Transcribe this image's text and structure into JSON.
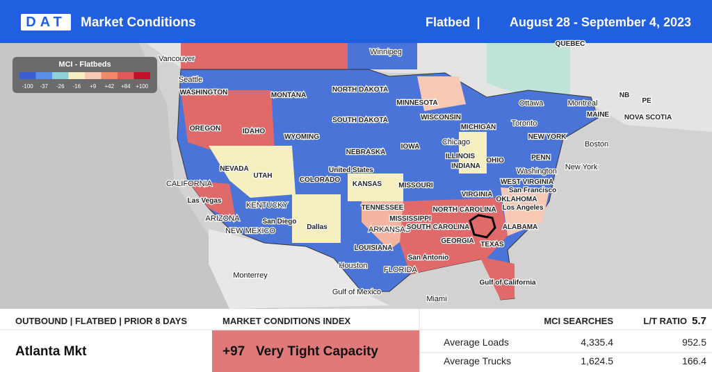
{
  "header": {
    "logo": "DAT",
    "title": "Market Conditions",
    "equipment": "Flatbed",
    "separator": "|",
    "dates": "August 28 - September 4, 2023"
  },
  "legend": {
    "title": "MCI - Flatbeds",
    "ticks": [
      "-100",
      "-37",
      "-26",
      "-16",
      "+9",
      "+42",
      "+84",
      "+100"
    ]
  },
  "map": {
    "labels": [
      "Vancouver",
      "Winnipeg",
      "QUEBEC",
      "Seattle",
      "WASHINGTON",
      "MONTANA",
      "NORTH DAKOTA",
      "MINNESOTA",
      "Ottawa",
      "Montreal",
      "MAINE",
      "NB",
      "PE",
      "NOVA SCOTIA",
      "OREGON",
      "IDAHO",
      "WYOMING",
      "SOUTH DAKOTA",
      "WISCONSIN",
      "MICHIGAN",
      "Toronto",
      "NEW YORK",
      "Boston",
      "NEBRASKA",
      "IOWA",
      "Chicago",
      "ILLINOIS",
      "INDIANA",
      "OHIO",
      "PENN",
      "New York",
      "NEVADA",
      "UTAH",
      "United States",
      "COLORADO",
      "KANSAS",
      "MISSOURI",
      "Washington",
      "WEST VIRGINIA",
      "San Francisco",
      "CALIFORNIA",
      "Las Vegas",
      "KENTUCKY",
      "VIRGINIA",
      "OKLAHOMA",
      "TENNESSEE",
      "NORTH CAROLINA",
      "Los Angeles",
      "ARIZONA",
      "San Diego",
      "NEW MEXICO",
      "Dallas",
      "ARKANSAS",
      "MISSISSIPPI",
      "SOUTH CAROLINA",
      "ALABAMA",
      "GEORGIA",
      "TEXAS",
      "LOUISIANA",
      "San Antonio",
      "Houston",
      "FLORIDA",
      "Gulf of California",
      "Monterrey",
      "Gulf of Mexico",
      "Miami"
    ]
  },
  "panel": {
    "left": {
      "heading": "OUTBOUND | FLATBED | PRIOR 8 DAYS",
      "market": "Atlanta Mkt"
    },
    "middle": {
      "heading": "MARKET CONDITIONS INDEX",
      "value": "+97",
      "status": "Very Tight Capacity"
    },
    "right": {
      "col1": "MCI SEARCHES",
      "col2": "L/T RATIO",
      "ratio": "5.7",
      "rows": [
        [
          "Average Loads",
          "4,335.4",
          "952.5"
        ],
        [
          "Average Trucks",
          "1,624.5",
          "166.4"
        ]
      ]
    }
  }
}
